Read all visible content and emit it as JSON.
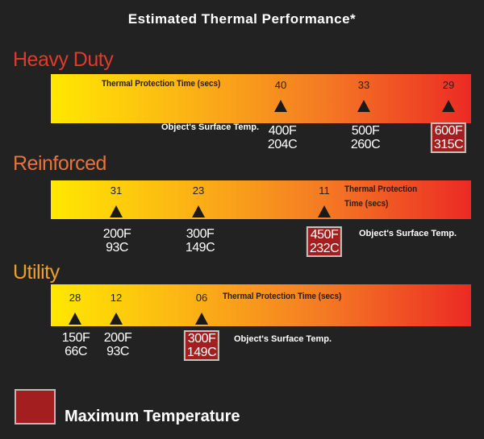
{
  "title": "Estimated Thermal Performance*",
  "colors": {
    "heavy": "#e03a2a",
    "reinforced": "#e8733a",
    "utility": "#f0a020",
    "max_box": "#a31f1f"
  },
  "time_label": "Thermal Protection Time (secs)",
  "time_label_line1": "Thermal Protection",
  "time_label_line2": "Time (secs)",
  "temp_label": "Object's Surface Temp.",
  "grades": [
    {
      "name": "Heavy Duty",
      "points": [
        {
          "time": "40",
          "f": "400F",
          "c": "204C",
          "max": false
        },
        {
          "time": "33",
          "f": "500F",
          "c": "260C",
          "max": false
        },
        {
          "time": "29",
          "f": "600F",
          "c": "315C",
          "max": true
        }
      ]
    },
    {
      "name": "Reinforced",
      "points": [
        {
          "time": "31",
          "f": "200F",
          "c": "93C",
          "max": false
        },
        {
          "time": "23",
          "f": "300F",
          "c": "149C",
          "max": false
        },
        {
          "time": "11",
          "f": "450F",
          "c": "232C",
          "max": true
        }
      ]
    },
    {
      "name": "Utility",
      "points": [
        {
          "time": "28",
          "f": "150F",
          "c": "66C",
          "max": false
        },
        {
          "time": "12",
          "f": "200F",
          "c": "93C",
          "max": false
        },
        {
          "time": "06",
          "f": "300F",
          "c": "149C",
          "max": true
        }
      ]
    }
  ],
  "legend": {
    "label": "Maximum Temperature"
  }
}
